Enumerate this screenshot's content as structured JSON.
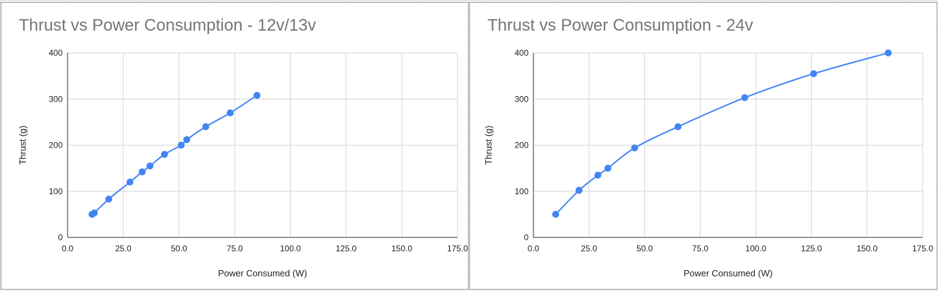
{
  "chart_data": [
    {
      "type": "line",
      "title": "Thrust vs Power Consumption - 12v/13v",
      "xlabel": "Power Consumed (W)",
      "ylabel": "Thrust (g)",
      "xlim": [
        0,
        175
      ],
      "ylim": [
        0,
        400
      ],
      "x_ticks": [
        "0.0",
        "25.0",
        "50.0",
        "75.0",
        "100.0",
        "125.0",
        "150.0",
        "175.0"
      ],
      "y_ticks": [
        "0",
        "100",
        "200",
        "300",
        "400"
      ],
      "x_tick_values": [
        0,
        25,
        50,
        75,
        100,
        125,
        150,
        175
      ],
      "y_tick_values": [
        0,
        100,
        200,
        300,
        400
      ],
      "grid": true,
      "series": [
        {
          "color": "#4285f4",
          "points": [
            [
              11,
              50
            ],
            [
              12,
              53
            ],
            [
              18.5,
              83
            ],
            [
              28,
              120
            ],
            [
              33.5,
              142
            ],
            [
              37,
              155
            ],
            [
              43.5,
              180
            ],
            [
              51,
              200
            ],
            [
              53.5,
              212
            ],
            [
              62,
              240
            ],
            [
              73,
              270
            ],
            [
              85,
              308
            ]
          ]
        }
      ]
    },
    {
      "type": "line",
      "title": "Thrust vs Power Consumption - 24v",
      "xlabel": "Power Consumed (W)",
      "ylabel": "Thrust (g)",
      "xlim": [
        0,
        175
      ],
      "ylim": [
        0,
        400
      ],
      "x_ticks": [
        "0.0",
        "25.0",
        "50.0",
        "75.0",
        "100.0",
        "125.0",
        "150.0",
        "175.0"
      ],
      "y_ticks": [
        "0",
        "100",
        "200",
        "300",
        "400"
      ],
      "x_tick_values": [
        0,
        25,
        50,
        75,
        100,
        125,
        150,
        175
      ],
      "y_tick_values": [
        0,
        100,
        200,
        300,
        400
      ],
      "grid": true,
      "series": [
        {
          "color": "#4285f4",
          "points": [
            [
              10,
              50
            ],
            [
              20.5,
              102
            ],
            [
              29,
              135
            ],
            [
              33.5,
              150
            ],
            [
              45.5,
              194
            ],
            [
              65,
              240
            ],
            [
              95,
              303
            ],
            [
              126,
              355
            ],
            [
              159.5,
              400
            ]
          ]
        }
      ]
    }
  ]
}
